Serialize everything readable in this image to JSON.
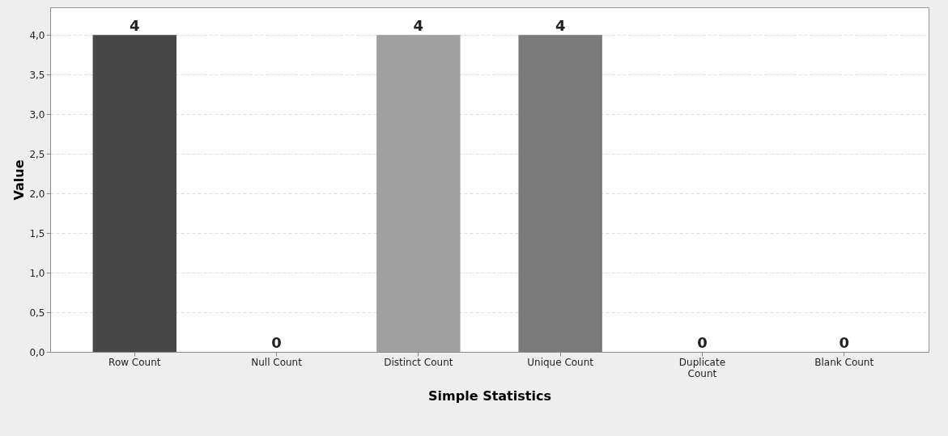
{
  "chart_data": {
    "type": "bar",
    "xlabel": "Simple Statistics",
    "ylabel": "Value",
    "categories": [
      "Row Count",
      "Null Count",
      "Distinct Count",
      "Unique Count",
      "Duplicate Count",
      "Blank Count"
    ],
    "values": [
      4,
      0,
      4,
      4,
      0,
      0
    ],
    "colors": [
      "#474747",
      "#5a5a5a",
      "#a0a0a0",
      "#7a7a7a",
      "#5a5a5a",
      "#5a5a5a"
    ],
    "ylim": [
      0,
      4.35
    ],
    "yticks": [
      {
        "value": 0,
        "label": "0,0"
      },
      {
        "value": 0.5,
        "label": "0,5"
      },
      {
        "value": 1,
        "label": "1,0"
      },
      {
        "value": 1.5,
        "label": "1,5"
      },
      {
        "value": 2,
        "label": "2,0"
      },
      {
        "value": 2.5,
        "label": "2,5"
      },
      {
        "value": 3,
        "label": "3,0"
      },
      {
        "value": 3.5,
        "label": "3,5"
      },
      {
        "value": 4,
        "label": "4,0"
      }
    ],
    "grid": "y",
    "data_labels": true
  }
}
